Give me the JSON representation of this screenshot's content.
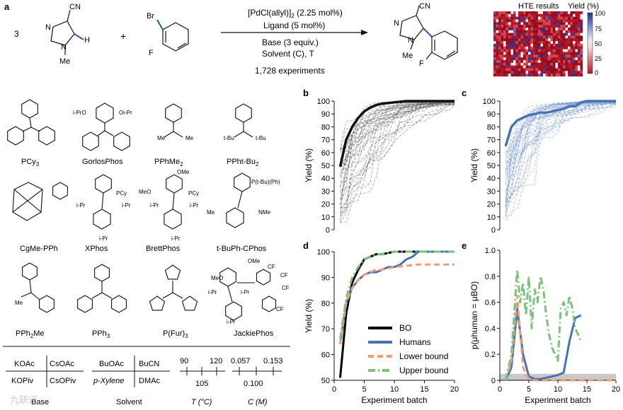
{
  "panel_letters": {
    "a": "a",
    "b": "b",
    "c": "c",
    "d": "d",
    "e": "e"
  },
  "reaction": {
    "coef": "3",
    "plus": "+",
    "cn": "CN",
    "br": "Br",
    "f": "F",
    "h": "H",
    "n": "N",
    "me": "Me",
    "cond1": "[PdCl(allyl)]",
    "cond1_sub": "2",
    "cond1_tail": " (2.25 mol%)",
    "cond2": "Ligand (5 mol%)",
    "cond3": "Base (3 equiv.)",
    "cond4": "Solvent (C), T",
    "cond5": "1,728 experiments"
  },
  "hte": {
    "title": "HTE results",
    "cbar_title": "Yield (%)",
    "cbar_ticks": [
      "100",
      "75",
      "50",
      "25",
      "0"
    ],
    "colors": {
      "low": "#b2182b",
      "mid": "#f4a6a6",
      "high": "#1f2f8f"
    }
  },
  "ligands": [
    {
      "name": "PCy",
      "sub": "3",
      "tail": ""
    },
    {
      "name": "GorlosPhos",
      "sub": "",
      "tail": ""
    },
    {
      "name": "PPhMe",
      "sub": "2",
      "tail": ""
    },
    {
      "name": "PPht-Bu",
      "sub": "2",
      "tail": ""
    },
    {
      "name": "CgMe-PPh",
      "sub": "",
      "tail": ""
    },
    {
      "name": "XPhos",
      "sub": "",
      "tail": ""
    },
    {
      "name": "BrettPhos",
      "sub": "",
      "tail": ""
    },
    {
      "name": "t-BuPh-CPhos",
      "sub": "",
      "tail": ""
    },
    {
      "name": "PPh",
      "sub": "2",
      "tail": "Me"
    },
    {
      "name": "PPh",
      "sub": "3",
      "tail": ""
    },
    {
      "name": "P(Fur)",
      "sub": "3",
      "tail": ""
    },
    {
      "name": "JackiePhos",
      "sub": "",
      "tail": ""
    }
  ],
  "struct_labels": {
    "p": "P",
    "ipro": "i-PrO",
    "oipr": "Oi-Pr",
    "me": "Me",
    "tbu": "t-Bu",
    "pcy2": "PCy",
    "ipr": "i-Pr",
    "ome": "OMe",
    "meo": "MeO",
    "ptbu": "P(t-Bu)(Ph)",
    "nme2": "NMe",
    "me2n": "Me",
    "o": "O",
    "cf3": "CF"
  },
  "conditions": {
    "base_grid": [
      "KOAc",
      "CsOAc",
      "KOPiv",
      "CsOPiv"
    ],
    "base_label": "Base",
    "solvent_grid": [
      "BuOAc",
      "BuCN",
      "p-Xylene",
      "DMAc"
    ],
    "solvent_label": "Solvent",
    "T_ticks_top": [
      "90",
      "120"
    ],
    "T_tick_bottom": "105",
    "T_label": "T (°C)",
    "C_ticks_top": [
      "0.057",
      "0.153"
    ],
    "C_tick_bottom": "0.100",
    "C_label": "C (M)"
  },
  "watermark": "九联讯",
  "chart_data": [
    {
      "panel": "b",
      "type": "line",
      "ylabel": "Yield (%)",
      "xlabel": "",
      "yticks": [
        "0",
        "10",
        "20",
        "30",
        "40",
        "50",
        "60",
        "70",
        "80",
        "90",
        "100"
      ],
      "ylim": [
        0,
        100
      ],
      "series": [
        {
          "style": "mean",
          "x": [
            1,
            2,
            3,
            4,
            5,
            6,
            7,
            8,
            10,
            12,
            14,
            16,
            18,
            20
          ],
          "y": [
            49,
            70,
            80,
            87,
            92,
            95,
            97,
            98,
            99,
            100,
            100,
            100,
            100,
            100
          ]
        }
      ],
      "color": "#111111"
    },
    {
      "panel": "c",
      "type": "line",
      "ylabel": "Yield (%)",
      "xlabel": "",
      "yticks": [
        "0",
        "10",
        "20",
        "30",
        "40",
        "50",
        "60",
        "70",
        "80",
        "90",
        "100"
      ],
      "ylim": [
        0,
        100
      ],
      "series": [
        {
          "style": "mean",
          "x": [
            1,
            2,
            3,
            4,
            5,
            6,
            7,
            8,
            9,
            10,
            11,
            12,
            13,
            14,
            15,
            16,
            18,
            20
          ],
          "y": [
            65,
            80,
            85,
            87,
            89,
            90,
            91,
            91,
            92,
            93,
            94,
            96,
            96,
            99,
            100,
            100,
            100,
            100
          ]
        }
      ],
      "color": "#4a72b0"
    },
    {
      "panel": "d",
      "type": "line",
      "ylabel": "Yield (%)",
      "xlabel": "Experiment batch",
      "xticks": [
        "0",
        "5",
        "10",
        "15",
        "20"
      ],
      "xlim": [
        0,
        20
      ],
      "yticks": [
        "50",
        "60",
        "70",
        "80",
        "90",
        "100"
      ],
      "ylim": [
        50,
        100
      ],
      "legend": [
        "BO",
        "Humans",
        "Lower bound",
        "Upper bound"
      ],
      "series": [
        {
          "name": "BO",
          "color": "#000000",
          "dash": "",
          "x": [
            1,
            2,
            3,
            4,
            5,
            6,
            7,
            8,
            9,
            10,
            12,
            14,
            16,
            18,
            20
          ],
          "y": [
            51,
            76,
            88,
            93,
            97,
            98,
            99,
            99,
            99.5,
            100,
            100,
            100,
            100,
            100,
            100
          ]
        },
        {
          "name": "Humans",
          "color": "#4a72b0",
          "dash": "",
          "x": [
            1,
            2,
            3,
            4,
            5,
            6,
            7,
            8,
            9,
            10,
            11,
            12,
            13,
            14,
            15,
            16,
            18,
            20
          ],
          "y": [
            64,
            80,
            86,
            89,
            91,
            92,
            92,
            93,
            94,
            94,
            95,
            97,
            98,
            100,
            100,
            100,
            100,
            100
          ]
        },
        {
          "name": "Lower bound",
          "color": "#f0a070",
          "dash": "8,5",
          "x": [
            1,
            2,
            3,
            4,
            5,
            6,
            7,
            8,
            10,
            12,
            14,
            16,
            18,
            20
          ],
          "y": [
            64,
            80,
            86,
            89,
            91,
            92,
            93,
            93,
            94,
            94.5,
            95,
            95,
            95,
            95
          ]
        },
        {
          "name": "Upper bound",
          "color": "#7fbf7f",
          "dash": "10,4,2,4",
          "x": [
            1,
            2,
            3,
            4,
            5,
            6,
            7,
            8,
            10,
            12,
            14,
            16,
            18,
            20
          ],
          "y": [
            66,
            82,
            90,
            94,
            97,
            98,
            99,
            99,
            100,
            100,
            100,
            100,
            100,
            100
          ]
        }
      ]
    },
    {
      "panel": "e",
      "type": "line",
      "ylabel": "p(μhuman = μBO)",
      "xlabel": "Experiment batch",
      "xticks": [
        "0",
        "5",
        "10",
        "15",
        "20"
      ],
      "xlim": [
        0,
        20
      ],
      "yticks": [
        "0",
        "0.2",
        "0.4",
        "0.6",
        "0.8",
        "1.0"
      ],
      "ylim": [
        0,
        1
      ],
      "series": [
        {
          "name": "Humans",
          "color": "#4a72b0",
          "dash": "",
          "x": [
            1,
            2,
            3,
            4,
            5,
            6,
            7,
            8,
            9,
            10,
            11,
            12,
            13,
            14
          ],
          "y": [
            0,
            0.1,
            0.55,
            0.2,
            0.03,
            0.01,
            0.01,
            0.02,
            0.03,
            0.04,
            0.06,
            0.3,
            0.48,
            0.5
          ]
        },
        {
          "name": "Lower bound",
          "color": "#f0a070",
          "dash": "8,5",
          "x": [
            1,
            2,
            3,
            4,
            5,
            6,
            8,
            10,
            12,
            14,
            16,
            18,
            20
          ],
          "y": [
            0,
            0.15,
            0.65,
            0.1,
            0.01,
            0,
            0,
            0,
            0,
            0,
            0,
            0,
            0
          ]
        },
        {
          "name": "Upper bound",
          "color": "#7fbf7f",
          "dash": "10,4,2,4",
          "x": [
            1,
            2,
            3,
            3.5,
            4,
            4.5,
            5,
            5.5,
            6,
            6.5,
            7,
            7.5,
            8,
            8.5,
            9,
            9.5,
            10,
            10.5,
            11,
            11.5,
            12,
            12.5,
            13,
            13.5,
            14
          ],
          "y": [
            0,
            0.2,
            0.85,
            0.6,
            0.75,
            0.5,
            0.8,
            0.4,
            0.7,
            0.6,
            0.8,
            0.7,
            0.5,
            0.35,
            0.25,
            0.2,
            0.15,
            0.55,
            0.6,
            0.5,
            0.65,
            0.55,
            0.4,
            0.35,
            0.3
          ]
        }
      ],
      "shaded_band": [
        0,
        0.05
      ]
    }
  ]
}
